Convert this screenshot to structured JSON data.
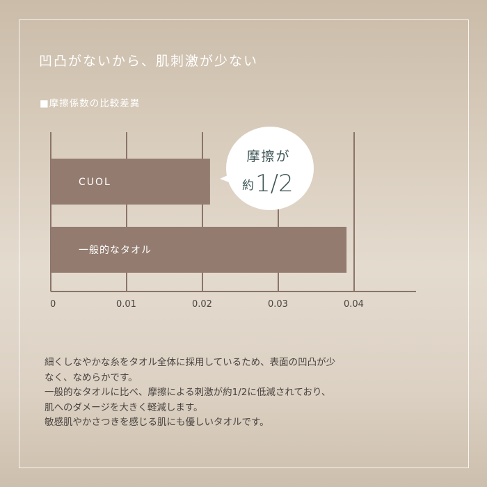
{
  "title": "凹凸がないから、肌刺激が少ない",
  "subtitle": "■摩擦係数の比較差異",
  "callout": {
    "line1": "摩擦が",
    "prefix": "約",
    "value": "1/2"
  },
  "colors": {
    "bar": "#937b6f",
    "axis": "#8a7469",
    "callout_text": "#3f5656"
  },
  "chart_data": {
    "type": "bar",
    "orientation": "horizontal",
    "categories": [
      "CUOL",
      "一般的なタオル"
    ],
    "values": [
      0.021,
      0.039
    ],
    "xlim": [
      0,
      0.048
    ],
    "xticks": [
      "0",
      "0.01",
      "0.02",
      "0.03",
      "0.04"
    ],
    "grid": true
  },
  "body_lines": [
    "細くしなやかな糸をタオル全体に採用しているため、表面の凹凸が少",
    "なく、なめらかです。",
    "一般的なタオルに比べ、摩擦による刺激が約1/2に低減されており、",
    "肌へのダメージを大きく軽減します。",
    "敏感肌やかさつきを感じる肌にも優しいタオルです。"
  ]
}
